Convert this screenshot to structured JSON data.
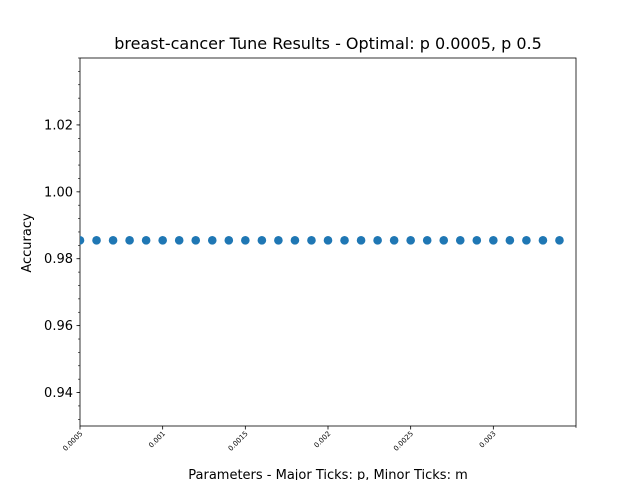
{
  "chart_data": {
    "type": "scatter",
    "title": "breast-cancer Tune Results - Optimal: p 0.0005, p 0.5",
    "xlabel": "Parameters - Major Ticks: p, Minor Ticks: m",
    "ylabel": "Accuracy",
    "xlim": [
      0.0005,
      0.0035
    ],
    "ylim": [
      0.93,
      1.04
    ],
    "xticks": [
      0.0005,
      0.001,
      0.0015,
      0.002,
      0.0025,
      0.003
    ],
    "xtick_labels": [
      "0.0005",
      "0.001",
      "0.0015",
      "0.002",
      "0.0025",
      "0.003"
    ],
    "yticks": [
      0.94,
      0.96,
      0.98,
      1.0,
      1.02
    ],
    "ytick_labels": [
      "0.94",
      "0.96",
      "0.98",
      "1.00",
      "1.02"
    ],
    "y_minor_step": 0.004,
    "series": [
      {
        "color": "#1f77b4",
        "x": [
          0.0005,
          0.0006,
          0.0007,
          0.0008,
          0.0009,
          0.001,
          0.0011,
          0.0012,
          0.0013,
          0.0014,
          0.0015,
          0.0016,
          0.0017,
          0.0018,
          0.0019,
          0.002,
          0.0021,
          0.0022,
          0.0023,
          0.0024,
          0.0025,
          0.0026,
          0.0027,
          0.0028,
          0.0029,
          0.003,
          0.0031,
          0.0032,
          0.0033,
          0.0034
        ],
        "y": [
          0.9855,
          0.9855,
          0.9855,
          0.9855,
          0.9855,
          0.9855,
          0.9855,
          0.9855,
          0.9855,
          0.9855,
          0.9855,
          0.9855,
          0.9855,
          0.9855,
          0.9855,
          0.9855,
          0.9855,
          0.9855,
          0.9855,
          0.9855,
          0.9855,
          0.9855,
          0.9855,
          0.9855,
          0.9855,
          0.9855,
          0.9855,
          0.9855,
          0.9855,
          0.9855
        ]
      }
    ],
    "grid": false
  }
}
